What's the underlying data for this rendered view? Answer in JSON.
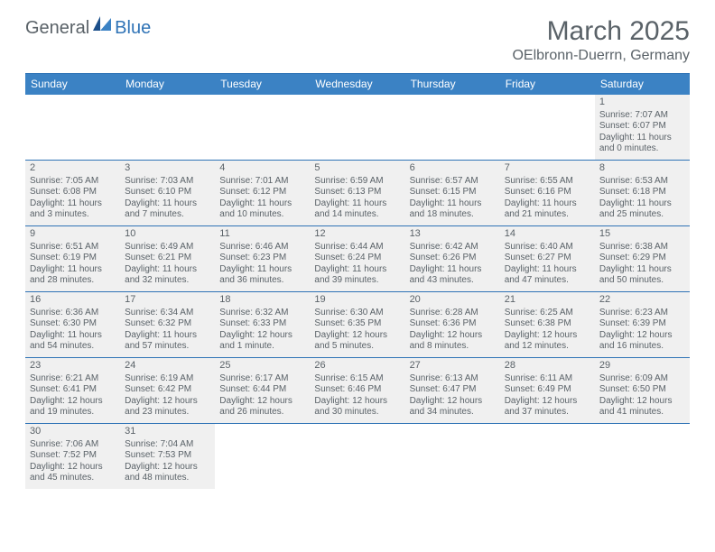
{
  "logo": {
    "general": "General",
    "blue": "Blue"
  },
  "title": "March 2025",
  "location": "OElbronn-Duerrn, Germany",
  "colors": {
    "accent": "#3b82c4",
    "border": "#2f73b6",
    "text": "#5a6268",
    "fill": "#f0f0f0",
    "bg": "#ffffff"
  },
  "dayNames": [
    "Sunday",
    "Monday",
    "Tuesday",
    "Wednesday",
    "Thursday",
    "Friday",
    "Saturday"
  ],
  "weeks": [
    [
      null,
      null,
      null,
      null,
      null,
      null,
      {
        "n": "1",
        "sr": "7:07 AM",
        "ss": "6:07 PM",
        "dl": "11 hours and 0 minutes."
      }
    ],
    [
      {
        "n": "2",
        "sr": "7:05 AM",
        "ss": "6:08 PM",
        "dl": "11 hours and 3 minutes."
      },
      {
        "n": "3",
        "sr": "7:03 AM",
        "ss": "6:10 PM",
        "dl": "11 hours and 7 minutes."
      },
      {
        "n": "4",
        "sr": "7:01 AM",
        "ss": "6:12 PM",
        "dl": "11 hours and 10 minutes."
      },
      {
        "n": "5",
        "sr": "6:59 AM",
        "ss": "6:13 PM",
        "dl": "11 hours and 14 minutes."
      },
      {
        "n": "6",
        "sr": "6:57 AM",
        "ss": "6:15 PM",
        "dl": "11 hours and 18 minutes."
      },
      {
        "n": "7",
        "sr": "6:55 AM",
        "ss": "6:16 PM",
        "dl": "11 hours and 21 minutes."
      },
      {
        "n": "8",
        "sr": "6:53 AM",
        "ss": "6:18 PM",
        "dl": "11 hours and 25 minutes."
      }
    ],
    [
      {
        "n": "9",
        "sr": "6:51 AM",
        "ss": "6:19 PM",
        "dl": "11 hours and 28 minutes."
      },
      {
        "n": "10",
        "sr": "6:49 AM",
        "ss": "6:21 PM",
        "dl": "11 hours and 32 minutes."
      },
      {
        "n": "11",
        "sr": "6:46 AM",
        "ss": "6:23 PM",
        "dl": "11 hours and 36 minutes."
      },
      {
        "n": "12",
        "sr": "6:44 AM",
        "ss": "6:24 PM",
        "dl": "11 hours and 39 minutes."
      },
      {
        "n": "13",
        "sr": "6:42 AM",
        "ss": "6:26 PM",
        "dl": "11 hours and 43 minutes."
      },
      {
        "n": "14",
        "sr": "6:40 AM",
        "ss": "6:27 PM",
        "dl": "11 hours and 47 minutes."
      },
      {
        "n": "15",
        "sr": "6:38 AM",
        "ss": "6:29 PM",
        "dl": "11 hours and 50 minutes."
      }
    ],
    [
      {
        "n": "16",
        "sr": "6:36 AM",
        "ss": "6:30 PM",
        "dl": "11 hours and 54 minutes."
      },
      {
        "n": "17",
        "sr": "6:34 AM",
        "ss": "6:32 PM",
        "dl": "11 hours and 57 minutes."
      },
      {
        "n": "18",
        "sr": "6:32 AM",
        "ss": "6:33 PM",
        "dl": "12 hours and 1 minute."
      },
      {
        "n": "19",
        "sr": "6:30 AM",
        "ss": "6:35 PM",
        "dl": "12 hours and 5 minutes."
      },
      {
        "n": "20",
        "sr": "6:28 AM",
        "ss": "6:36 PM",
        "dl": "12 hours and 8 minutes."
      },
      {
        "n": "21",
        "sr": "6:25 AM",
        "ss": "6:38 PM",
        "dl": "12 hours and 12 minutes."
      },
      {
        "n": "22",
        "sr": "6:23 AM",
        "ss": "6:39 PM",
        "dl": "12 hours and 16 minutes."
      }
    ],
    [
      {
        "n": "23",
        "sr": "6:21 AM",
        "ss": "6:41 PM",
        "dl": "12 hours and 19 minutes."
      },
      {
        "n": "24",
        "sr": "6:19 AM",
        "ss": "6:42 PM",
        "dl": "12 hours and 23 minutes."
      },
      {
        "n": "25",
        "sr": "6:17 AM",
        "ss": "6:44 PM",
        "dl": "12 hours and 26 minutes."
      },
      {
        "n": "26",
        "sr": "6:15 AM",
        "ss": "6:46 PM",
        "dl": "12 hours and 30 minutes."
      },
      {
        "n": "27",
        "sr": "6:13 AM",
        "ss": "6:47 PM",
        "dl": "12 hours and 34 minutes."
      },
      {
        "n": "28",
        "sr": "6:11 AM",
        "ss": "6:49 PM",
        "dl": "12 hours and 37 minutes."
      },
      {
        "n": "29",
        "sr": "6:09 AM",
        "ss": "6:50 PM",
        "dl": "12 hours and 41 minutes."
      }
    ],
    [
      {
        "n": "30",
        "sr": "7:06 AM",
        "ss": "7:52 PM",
        "dl": "12 hours and 45 minutes."
      },
      {
        "n": "31",
        "sr": "7:04 AM",
        "ss": "7:53 PM",
        "dl": "12 hours and 48 minutes."
      },
      null,
      null,
      null,
      null,
      null
    ]
  ],
  "labels": {
    "sunrise": "Sunrise:",
    "sunset": "Sunset:",
    "daylight": "Daylight:"
  }
}
